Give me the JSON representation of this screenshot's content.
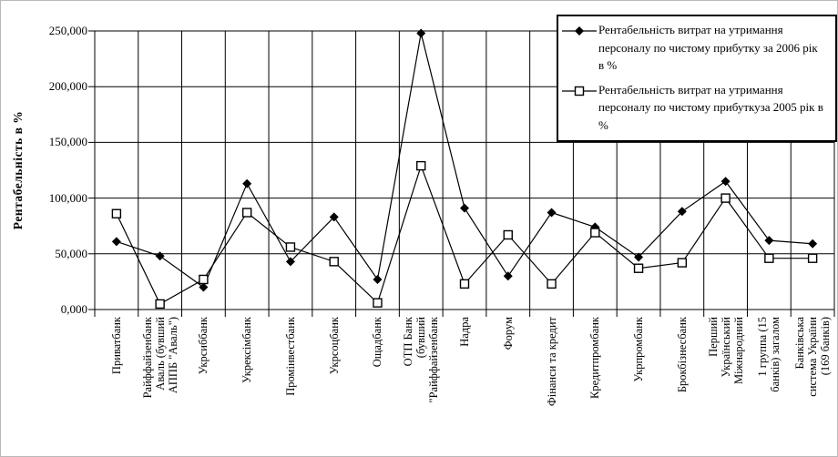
{
  "chart_data": {
    "type": "line",
    "title": "",
    "y_axis": {
      "title": "Рентабельність в %",
      "min": 0,
      "max": 250,
      "tick_labels": [
        "0,000",
        "50,000",
        "100,000",
        "150,000",
        "200,000",
        "250,000"
      ],
      "grid": true
    },
    "x_axis": {
      "grid": true,
      "label_rotation_deg": -90
    },
    "categories": [
      [
        "Приватбанк"
      ],
      [
        "Райффайзенбанк",
        "Аваль (бувший",
        "АППБ \"Аваль\")"
      ],
      [
        "Укрсиббанк"
      ],
      [
        "Укрексімбанк"
      ],
      [
        "Промінвестбанк"
      ],
      [
        "Укрсоцбанк"
      ],
      [
        "Ощадбанк"
      ],
      [
        "ОТП Банк",
        "(бувший",
        "\"Райффайзенбанк"
      ],
      [
        "Надра"
      ],
      [
        "Форум"
      ],
      [
        "Фінанси та кредит"
      ],
      [
        "Кредитпромбанк"
      ],
      [
        "Укрпромбанк"
      ],
      [
        "Брокбізнесбанк"
      ],
      [
        "Перший",
        "Український",
        "Міжнародний"
      ],
      [
        "1 группа (15",
        "банків) загалом"
      ],
      [
        "Банківська",
        "система України",
        "(169 банків)"
      ]
    ],
    "series": [
      {
        "name": "Рентабельність витрат на утримання персоналу по чистому прибутку за 2006 рік в %",
        "marker": "filled-diamond",
        "color": "#000000",
        "values": [
          61,
          48,
          20,
          113,
          43,
          83,
          27,
          248,
          91,
          30,
          87,
          74,
          47,
          88,
          115,
          62,
          59
        ]
      },
      {
        "name": "Рентабельність витрат на утримання персоналу по чистому прибуткуза 2005 рік в %",
        "marker": "open-square",
        "color": "#000000",
        "values": [
          86,
          5,
          27,
          87,
          56,
          43,
          6,
          129,
          23,
          67,
          23,
          69,
          37,
          42,
          100,
          46,
          46
        ]
      }
    ],
    "legend": {
      "position": "top-right",
      "border": true
    }
  }
}
